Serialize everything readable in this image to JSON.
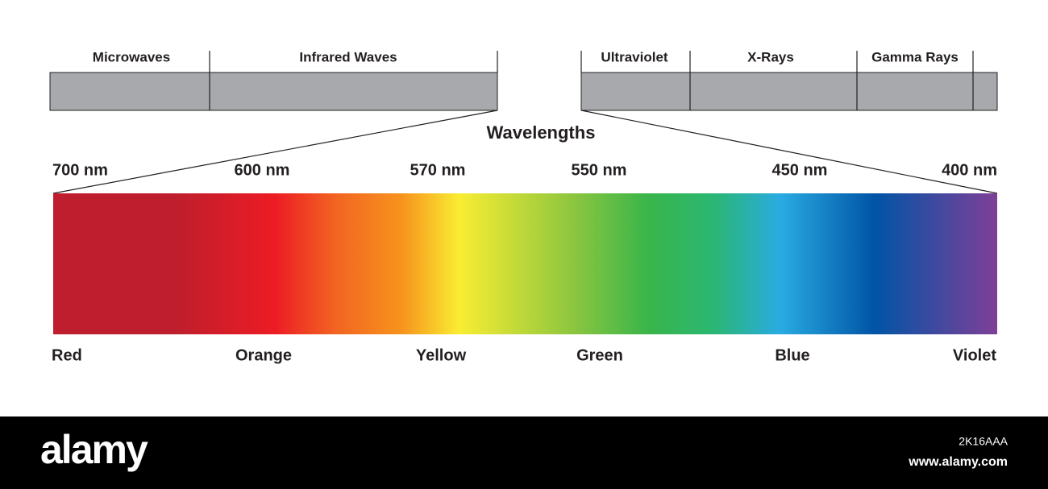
{
  "top_bands": {
    "left": [
      "Microwaves",
      "Infrared Waves"
    ],
    "right": [
      "Ultraviolet",
      "X-Rays",
      "Gamma Rays"
    ]
  },
  "title": "Wavelengths",
  "wavelengths": [
    "700 nm",
    "600 nm",
    "570 nm",
    "550 nm",
    "450 nm",
    "400 nm"
  ],
  "colors": [
    "Red",
    "Orange",
    "Yellow",
    "Green",
    "Blue",
    "Violet"
  ],
  "footer": {
    "logo": "alamy",
    "image_id": "2K16AAA",
    "url": "www.alamy.com"
  }
}
